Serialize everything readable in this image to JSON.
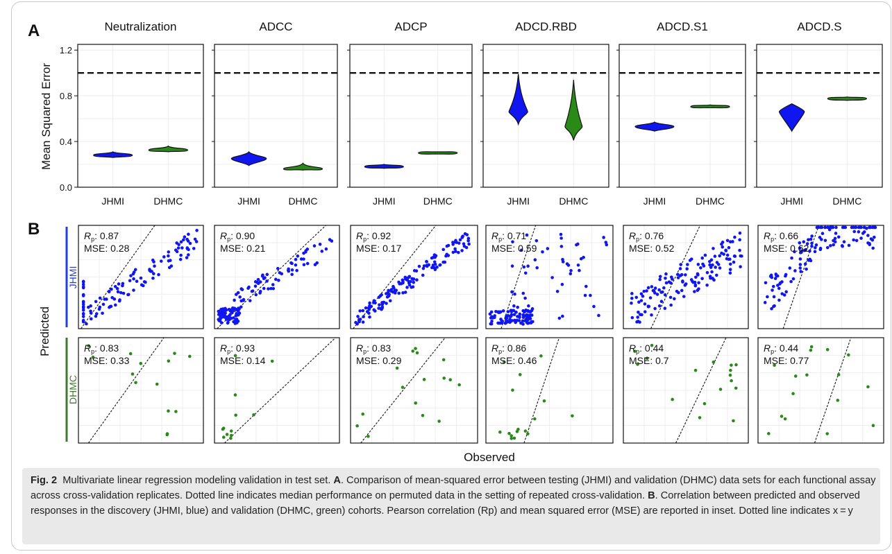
{
  "figure": {
    "panel_a_letter": "A",
    "panel_b_letter": "B",
    "y_label_a": "Mean Squared Error",
    "y_label_b": "Predicted",
    "x_label_b": "Observed",
    "row_labels": [
      "JHMI",
      "DHMC"
    ],
    "colors": {
      "jhmi": "#1016f0",
      "dhmc": "#2a8a17",
      "jhmi_bar": "#1f3fe8",
      "dhmc_bar": "#3d7a2a"
    }
  },
  "chart_data": [
    {
      "type": "violin",
      "panel": "A",
      "ylabel": "Mean Squared Error",
      "ylim": [
        0,
        1.25
      ],
      "yticks": [
        "0.0",
        "0.4",
        "0.8",
        "1.2"
      ],
      "categories": [
        "JHMI",
        "DHMC"
      ],
      "reference_line": 1.0,
      "grid": true,
      "facets": [
        {
          "title": "Neutralization",
          "series": [
            {
              "name": "JHMI",
              "median": 0.28,
              "min": 0.26,
              "max": 0.31
            },
            {
              "name": "DHMC",
              "median": 0.325,
              "min": 0.31,
              "max": 0.36
            }
          ]
        },
        {
          "title": "ADCC",
          "series": [
            {
              "name": "JHMI",
              "median": 0.25,
              "min": 0.19,
              "max": 0.31
            },
            {
              "name": "DHMC",
              "median": 0.16,
              "min": 0.15,
              "max": 0.21
            }
          ]
        },
        {
          "title": "ADCP",
          "series": [
            {
              "name": "JHMI",
              "median": 0.18,
              "min": 0.165,
              "max": 0.2
            },
            {
              "name": "DHMC",
              "median": 0.3,
              "min": 0.29,
              "max": 0.31
            }
          ]
        },
        {
          "title": "ADCD.RBD",
          "series": [
            {
              "name": "JHMI",
              "median": 0.66,
              "min": 0.55,
              "max": 0.99
            },
            {
              "name": "DHMC",
              "median": 0.53,
              "min": 0.41,
              "max": 0.94
            }
          ]
        },
        {
          "title": "ADCD.S1",
          "series": [
            {
              "name": "JHMI",
              "median": 0.53,
              "min": 0.49,
              "max": 0.57
            },
            {
              "name": "DHMC",
              "median": 0.705,
              "min": 0.695,
              "max": 0.72
            }
          ]
        },
        {
          "title": "ADCD.S",
          "series": [
            {
              "name": "JHMI",
              "median": 0.66,
              "min": 0.49,
              "max": 0.73
            },
            {
              "name": "DHMC",
              "median": 0.775,
              "min": 0.76,
              "max": 0.79
            }
          ]
        }
      ]
    },
    {
      "type": "scatter",
      "panel": "B",
      "xlabel": "Observed",
      "ylabel": "Predicted",
      "reference_line": "x = y",
      "rows": [
        {
          "name": "JHMI",
          "stats": [
            {
              "rp": "0.87",
              "mse": "0.28"
            },
            {
              "rp": "0.90",
              "mse": "0.21"
            },
            {
              "rp": "0.92",
              "mse": "0.17"
            },
            {
              "rp": "0.71",
              "mse": "0.59"
            },
            {
              "rp": "0.76",
              "mse": "0.52"
            },
            {
              "rp": "0.66",
              "mse": "0.62"
            }
          ]
        },
        {
          "name": "DHMC",
          "stats": [
            {
              "rp": "0.83",
              "mse": "0.33"
            },
            {
              "rp": "0.93",
              "mse": "0.14"
            },
            {
              "rp": "0.83",
              "mse": "0.29"
            },
            {
              "rp": "0.86",
              "mse": "0.46"
            },
            {
              "rp": "0.44",
              "mse": "0.7"
            },
            {
              "rp": "0.44",
              "mse": "0.77"
            }
          ]
        }
      ]
    }
  ],
  "caption": {
    "label": "Fig. 2",
    "text_1": "Multivariate linear regression modeling validation in test set. ",
    "a": "A",
    "text_2": ". Comparison of mean-squared error between testing (JHMI) and validation (DHMC) data sets for each functional assay across cross-validation replicates. Dotted line indicates median performance on permuted data in the setting of repeated cross-validation. ",
    "b": "B",
    "text_3": ". Correlation between predicted and observed responses in the discovery (JHMI, blue) and validation (DHMC, green) cohorts. Pearson correlation (Rp) and mean squared error (MSE) are reported in inset. Dotted line indicates x = y"
  }
}
